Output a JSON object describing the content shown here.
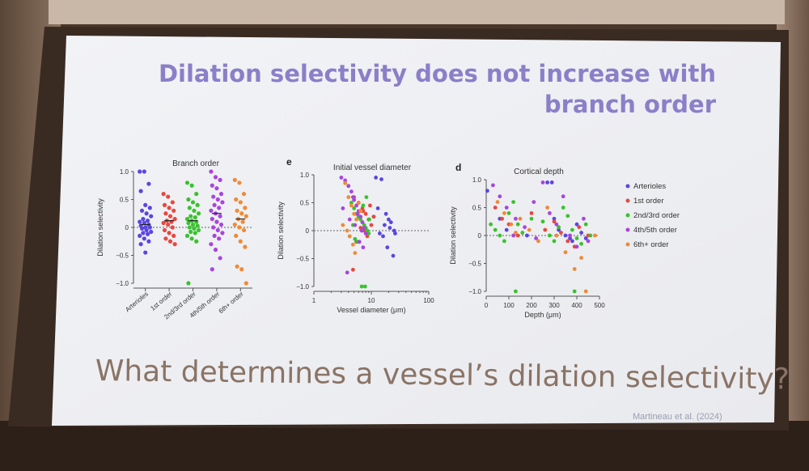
{
  "slide": {
    "title_line1": "Dilation selectivity does not increase with",
    "title_line2": "branch order",
    "question": "What determines a vessel’s dilation selectivity?",
    "citation": "Martineau et al. (2024)"
  },
  "series_colors": {
    "Arterioles": "#5a46e0",
    "1st order": "#e8473f",
    "2nd/3rd order": "#39c22e",
    "4th/5th order": "#a945dc",
    "6th+ order": "#ef8a36"
  },
  "chart_data": [
    {
      "type": "scatter",
      "title": "Branch order",
      "panel_letter": "",
      "ylabel": "Dilation selectivity",
      "xlabel": "",
      "ylim": [
        -1.0,
        1.0
      ],
      "y_ticks": [
        "1.0",
        "0.5",
        "0",
        "−0.5",
        "−1.0"
      ],
      "categories": [
        "Arterioles",
        "1st order",
        "2nd/3rd order",
        "4th/5th order",
        "6th+ order"
      ],
      "reference_line": 0,
      "series": [
        {
          "name": "Arterioles",
          "values": [
            1.0,
            1.0,
            0.78,
            0.65,
            0.4,
            0.35,
            0.3,
            0.25,
            0.2,
            0.15,
            0.12,
            0.1,
            0.08,
            0.05,
            0.03,
            0.0,
            0.0,
            -0.02,
            -0.05,
            -0.08,
            -0.1,
            -0.12,
            -0.15,
            -0.2,
            -0.25,
            -0.3,
            -0.45
          ]
        },
        {
          "name": "1st order",
          "values": [
            0.6,
            0.55,
            0.45,
            0.4,
            0.35,
            0.3,
            0.25,
            0.2,
            0.15,
            0.12,
            0.1,
            0.08,
            0.05,
            0.0,
            -0.05,
            -0.1,
            -0.15,
            -0.2,
            -0.25,
            -0.3
          ]
        },
        {
          "name": "2nd/3rd order",
          "values": [
            0.8,
            0.75,
            0.6,
            0.5,
            0.45,
            0.4,
            0.35,
            0.3,
            0.25,
            0.2,
            0.18,
            0.15,
            0.12,
            0.1,
            0.08,
            0.05,
            0.03,
            0.0,
            -0.02,
            -0.05,
            -0.08,
            -0.1,
            -0.15,
            -0.2,
            -0.25,
            -1.0
          ]
        },
        {
          "name": "4th/5th order",
          "values": [
            1.0,
            0.9,
            0.85,
            0.75,
            0.7,
            0.6,
            0.55,
            0.5,
            0.45,
            0.4,
            0.35,
            0.3,
            0.25,
            0.2,
            0.15,
            0.1,
            0.05,
            0.0,
            -0.05,
            -0.1,
            -0.15,
            -0.2,
            -0.3,
            -0.4,
            -0.55,
            -0.75
          ]
        },
        {
          "name": "6th+ order",
          "values": [
            0.85,
            0.8,
            0.6,
            0.5,
            0.45,
            0.35,
            0.3,
            0.25,
            0.2,
            0.15,
            0.1,
            0.05,
            0.0,
            -0.05,
            -0.15,
            -0.25,
            -0.35,
            -0.7,
            -0.75,
            -1.0
          ]
        }
      ]
    },
    {
      "type": "scatter",
      "title": "Initial vessel diameter",
      "panel_letter": "e",
      "ylabel": "Dilation selectivity",
      "xlabel": "Vessel diameter (μm)",
      "x_scale": "log",
      "xlim": [
        1,
        100
      ],
      "x_ticks": [
        "1",
        "10",
        "100"
      ],
      "ylim": [
        -1.0,
        1.0
      ],
      "y_ticks": [
        "1.0",
        "0.5",
        "0",
        "−0.5",
        "−1.0"
      ],
      "reference_line": 0,
      "series": [
        {
          "name": "Arterioles",
          "x": [
            12,
            15,
            18,
            20,
            22,
            25,
            14,
            16,
            19,
            17,
            13,
            21,
            24,
            11,
            26
          ],
          "y": [
            0.95,
            0.92,
            0.3,
            0.2,
            0.15,
            0.0,
            -0.05,
            -0.1,
            -0.3,
            0.1,
            0.4,
            0.05,
            -0.45,
            0.25,
            -0.05
          ]
        },
        {
          "name": "1st order",
          "x": [
            5,
            6,
            7,
            8,
            9,
            10,
            6.5,
            7.5,
            8.5,
            5.5,
            9.5,
            11,
            4.8,
            7.2
          ],
          "y": [
            0.6,
            0.5,
            0.4,
            0.3,
            0.2,
            0.1,
            0.05,
            0.0,
            -0.1,
            -0.2,
            0.45,
            0.25,
            -0.7,
            0.35
          ]
        },
        {
          "name": "2nd/3rd order",
          "x": [
            4,
            4.5,
            5,
            5.5,
            6,
            6.5,
            7,
            7.5,
            8,
            8.5,
            9,
            4.2,
            5.2,
            6.2,
            7.2,
            8.2,
            9.2,
            4.8,
            5.8,
            6.8,
            7.8
          ],
          "y": [
            0.8,
            0.5,
            0.4,
            0.3,
            0.25,
            0.2,
            0.15,
            0.1,
            0.05,
            0.0,
            -0.05,
            -0.1,
            -0.15,
            0.35,
            0.45,
            0.6,
            0.2,
            0.1,
            -0.2,
            -1.0,
            -1.0
          ]
        },
        {
          "name": "4th/5th order",
          "x": [
            3,
            3.5,
            4,
            4.5,
            5,
            5.5,
            6,
            6.5,
            7,
            7.5,
            8,
            3.2,
            4.2,
            5.2,
            6.2,
            7.2,
            3.8,
            4.8,
            5.8,
            6.8
          ],
          "y": [
            0.95,
            0.9,
            0.8,
            0.7,
            0.55,
            0.45,
            0.35,
            0.25,
            0.15,
            0.05,
            -0.05,
            0.4,
            0.2,
            0.1,
            -0.2,
            -0.3,
            -0.75,
            0.6,
            0.3,
            0.0
          ]
        },
        {
          "name": "6th+ order",
          "x": [
            3.5,
            4,
            4.5,
            5,
            5.5,
            3.2,
            3.8,
            4.2,
            4.8,
            5.2,
            6,
            6.5
          ],
          "y": [
            0.85,
            0.6,
            0.45,
            0.3,
            0.2,
            0.1,
            0.0,
            -0.1,
            -0.25,
            -0.4,
            0.5,
            0.35
          ]
        }
      ]
    },
    {
      "type": "scatter",
      "title": "Cortical depth",
      "panel_letter": "d",
      "ylabel": "Dilation selectivity",
      "xlabel": "Depth (μm)",
      "xlim": [
        0,
        500
      ],
      "x_ticks": [
        "0",
        "100",
        "200",
        "300",
        "400",
        "500"
      ],
      "ylim": [
        -1.0,
        1.0
      ],
      "y_ticks": [
        "1.0",
        "0.5",
        "0",
        "−0.5",
        "−1.0"
      ],
      "reference_line": 0,
      "legend": {
        "position": "right",
        "entries": [
          "Arterioles",
          "1st order",
          "2nd/3rd order",
          "4th/5th order",
          "6th+ order"
        ]
      },
      "series": [
        {
          "name": "Arterioles",
          "x": [
            5,
            60,
            90,
            180,
            270,
            290,
            300,
            320,
            350,
            370,
            380,
            400,
            420,
            440
          ],
          "y": [
            0.8,
            0.3,
            0.1,
            0.0,
            0.95,
            0.95,
            0.3,
            0.1,
            0.0,
            -0.05,
            -0.1,
            0.2,
            0.05,
            -0.05
          ]
        },
        {
          "name": "1st order",
          "x": [
            40,
            70,
            100,
            140,
            200,
            260,
            300,
            330,
            360,
            390,
            410,
            450
          ],
          "y": [
            0.5,
            0.3,
            0.2,
            0.0,
            0.4,
            0.1,
            0.25,
            0.05,
            -0.1,
            -0.2,
            0.15,
            0.0
          ]
        },
        {
          "name": "2nd/3rd order",
          "x": [
            20,
            40,
            60,
            80,
            100,
            120,
            140,
            160,
            200,
            250,
            280,
            300,
            320,
            340,
            360,
            380,
            400,
            420,
            440,
            460,
            130,
            390
          ],
          "y": [
            0.2,
            0.1,
            0.0,
            -0.1,
            0.4,
            0.6,
            0.2,
            0.05,
            0.3,
            0.25,
            0.0,
            -0.1,
            0.15,
            0.5,
            0.35,
            0.1,
            -0.05,
            -0.15,
            0.2,
            0.0,
            -1.0,
            -1.0
          ]
        },
        {
          "name": "4th/5th order",
          "x": [
            30,
            60,
            90,
            130,
            170,
            210,
            250,
            280,
            310,
            340,
            370,
            400,
            430,
            450,
            120,
            220
          ],
          "y": [
            0.9,
            0.7,
            0.5,
            0.3,
            0.15,
            0.6,
            0.95,
            0.4,
            0.2,
            0.7,
            0.0,
            -0.2,
            0.3,
            -0.1,
            0.0,
            -0.05
          ]
        },
        {
          "name": "6th+ order",
          "x": [
            50,
            80,
            110,
            150,
            190,
            230,
            270,
            310,
            350,
            390,
            420,
            440,
            130,
            480
          ],
          "y": [
            0.6,
            0.4,
            0.2,
            0.3,
            0.1,
            -0.1,
            0.5,
            0.0,
            -0.3,
            -0.6,
            -0.4,
            -1.0,
            0.05,
            0.0
          ]
        }
      ]
    }
  ]
}
